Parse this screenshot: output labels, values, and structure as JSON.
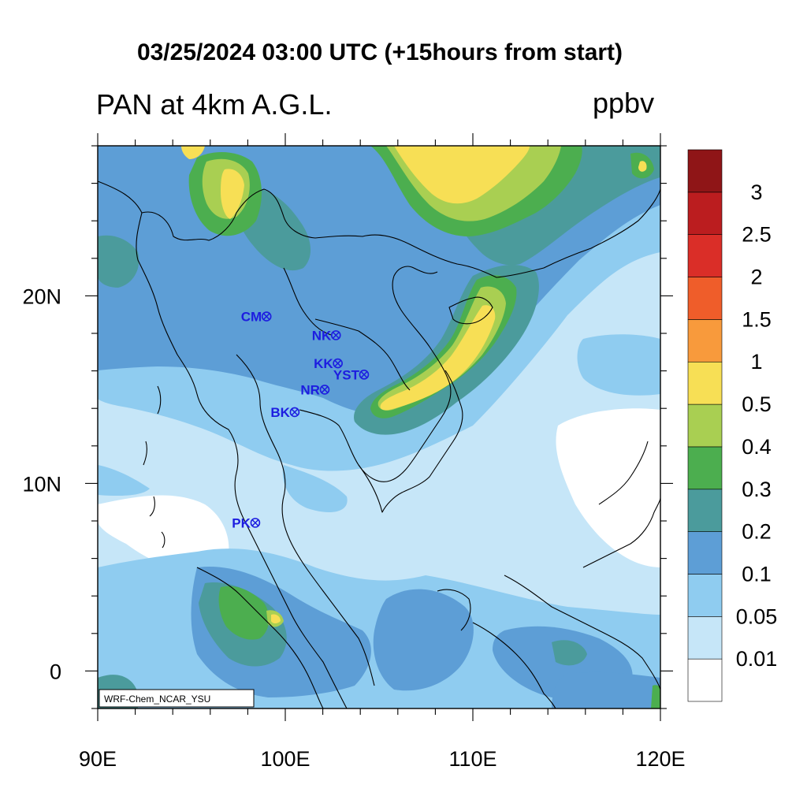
{
  "title": "03/25/2024 03:00 UTC (+15hours from start)",
  "field_label": "PAN at 4km A.G.L.",
  "unit_label": "ppbv",
  "credit": "WRF-Chem_NCAR_YSU",
  "map": {
    "lon_range": [
      90,
      120
    ],
    "lat_range": [
      -2,
      28
    ],
    "x_ticks": [
      {
        "lon": 90,
        "label": "90E"
      },
      {
        "lon": 100,
        "label": "100E"
      },
      {
        "lon": 110,
        "label": "110E"
      },
      {
        "lon": 120,
        "label": "120E"
      }
    ],
    "y_ticks": [
      {
        "lat": 20,
        "label": "20N"
      },
      {
        "lat": 10,
        "label": "10N"
      },
      {
        "lat": 0,
        "label": "0"
      }
    ]
  },
  "stations": [
    {
      "id": "CM",
      "label": "CM",
      "lon": 99.0,
      "lat": 18.9
    },
    {
      "id": "NK",
      "label": "NK",
      "lon": 102.7,
      "lat": 17.9
    },
    {
      "id": "KK",
      "label": "KK",
      "lon": 102.8,
      "lat": 16.4
    },
    {
      "id": "YST",
      "label": "YST",
      "lon": 104.2,
      "lat": 15.8
    },
    {
      "id": "NR",
      "label": "NR",
      "lon": 102.1,
      "lat": 15.0
    },
    {
      "id": "BK",
      "label": "BK",
      "lon": 100.5,
      "lat": 13.8
    },
    {
      "id": "PK",
      "label": "PK",
      "lon": 98.4,
      "lat": 7.9
    }
  ],
  "colorbar": {
    "colors": [
      "#ffffff",
      "#c6e6f8",
      "#8fccf0",
      "#5d9ed6",
      "#4b9b9c",
      "#4cae4f",
      "#a9cf52",
      "#f7df55",
      "#f89a3c",
      "#ef5d2a",
      "#da2e28",
      "#bb1d1f",
      "#8f1517"
    ],
    "labels": [
      "0.01",
      "0.05",
      "0.1",
      "0.2",
      "0.3",
      "0.4",
      "0.5",
      "1",
      "1.5",
      "2",
      "2.5",
      "3"
    ]
  }
}
